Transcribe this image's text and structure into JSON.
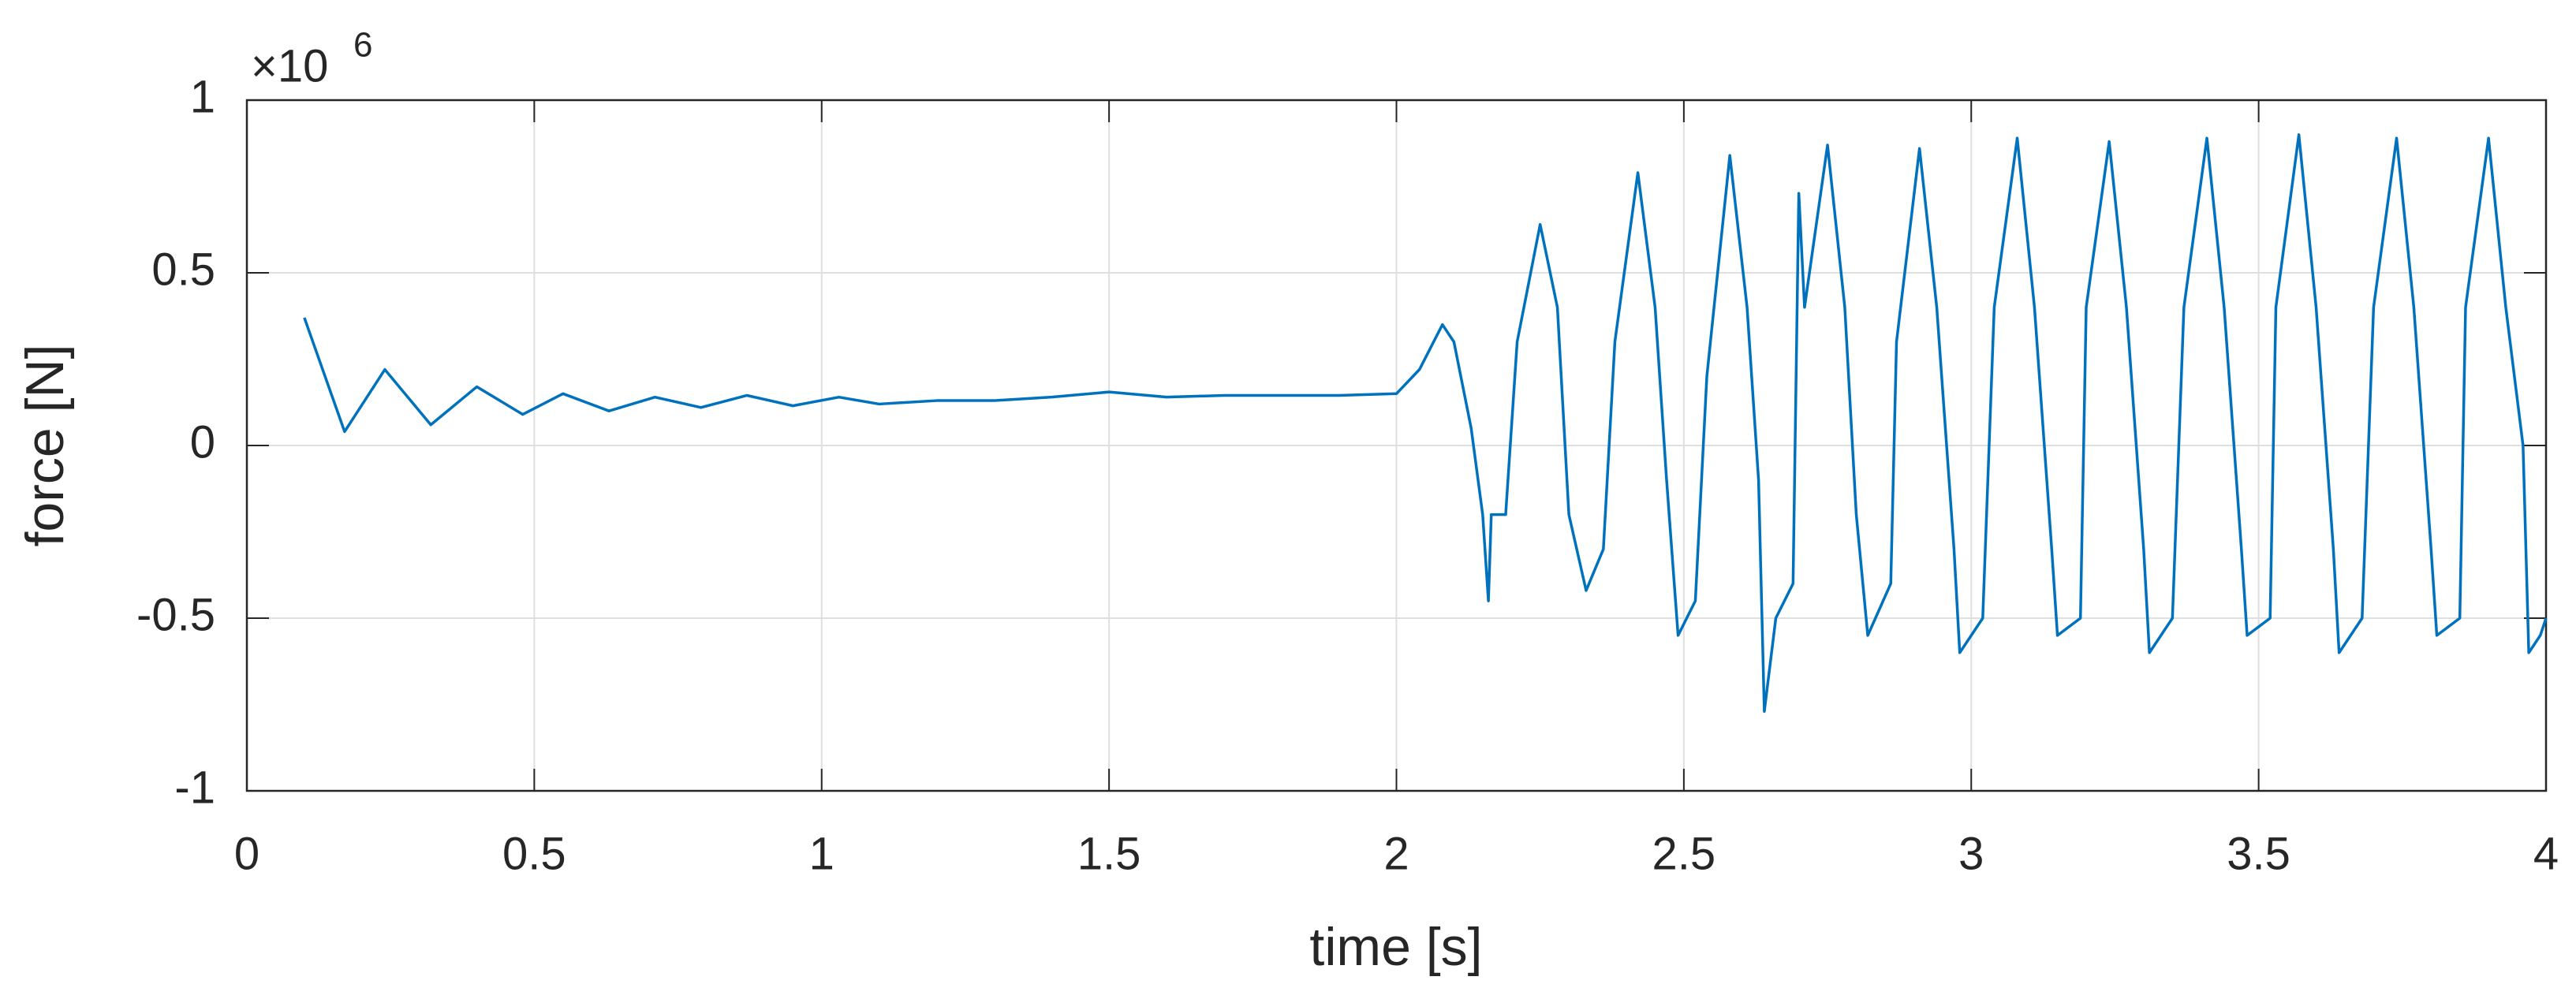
{
  "chart_data": {
    "type": "line",
    "xlabel": "time [s]",
    "ylabel": "force [N]",
    "y_multiplier": "×10",
    "y_exponent": "6",
    "xlim": [
      0,
      4
    ],
    "xticks": [
      0,
      0.5,
      1,
      1.5,
      2,
      2.5,
      3,
      3.5,
      4
    ],
    "ylim": [
      -1,
      1
    ],
    "yticks": [
      -1,
      -0.5,
      0,
      0.5,
      1
    ],
    "grid": true,
    "x": [
      0.1,
      0.17,
      0.24,
      0.32,
      0.4,
      0.48,
      0.55,
      0.63,
      0.71,
      0.79,
      0.87,
      0.95,
      1.03,
      1.1,
      1.2,
      1.3,
      1.4,
      1.5,
      1.6,
      1.7,
      1.8,
      1.9,
      2.0,
      2.04,
      2.08,
      2.1,
      2.13,
      2.15,
      2.16,
      2.165,
      2.19,
      2.2,
      2.21,
      2.25,
      2.28,
      2.3,
      2.33,
      2.36,
      2.37,
      2.38,
      2.42,
      2.45,
      2.47,
      2.49,
      2.52,
      2.54,
      2.58,
      2.61,
      2.63,
      2.64,
      2.66,
      2.69,
      2.7,
      2.71,
      2.75,
      2.78,
      2.8,
      2.82,
      2.86,
      2.87,
      2.91,
      2.94,
      2.97,
      2.98,
      3.02,
      3.04,
      3.08,
      3.11,
      3.14,
      3.15,
      3.19,
      3.2,
      3.24,
      3.27,
      3.3,
      3.31,
      3.35,
      3.37,
      3.41,
      3.44,
      3.47,
      3.48,
      3.52,
      3.53,
      3.57,
      3.6,
      3.63,
      3.64,
      3.68,
      3.7,
      3.74,
      3.77,
      3.8,
      3.81,
      3.85,
      3.86,
      3.9,
      3.93,
      3.96,
      3.97,
      3.99,
      4.0
    ],
    "series": [
      {
        "color": "#0072bd",
        "values": [
          0.37,
          0.04,
          0.22,
          0.06,
          0.17,
          0.09,
          0.15,
          0.1,
          0.14,
          0.11,
          0.145,
          0.115,
          0.14,
          0.12,
          0.13,
          0.13,
          0.14,
          0.155,
          0.14,
          0.145,
          0.145,
          0.145,
          0.15,
          0.22,
          0.35,
          0.3,
          0.05,
          -0.2,
          -0.45,
          -0.2,
          -0.2,
          0.05,
          0.3,
          0.64,
          0.4,
          -0.2,
          -0.42,
          -0.3,
          0,
          0.3,
          0.79,
          0.4,
          -0.1,
          -0.55,
          -0.45,
          0.2,
          0.84,
          0.4,
          -0.1,
          -0.77,
          -0.5,
          -0.4,
          0.73,
          0.4,
          0.87,
          0.4,
          -0.2,
          -0.55,
          -0.4,
          0.3,
          0.86,
          0.4,
          -0.3,
          -0.6,
          -0.5,
          0.4,
          0.89,
          0.4,
          -0.3,
          -0.55,
          -0.5,
          0.4,
          0.88,
          0.4,
          -0.3,
          -0.6,
          -0.5,
          0.4,
          0.89,
          0.4,
          -0.3,
          -0.55,
          -0.5,
          0.4,
          0.9,
          0.4,
          -0.3,
          -0.6,
          -0.5,
          0.4,
          0.89,
          0.4,
          -0.3,
          -0.55,
          -0.5,
          0.4,
          0.89,
          0.4,
          0,
          -0.6,
          -0.55,
          -0.5
        ]
      }
    ]
  }
}
